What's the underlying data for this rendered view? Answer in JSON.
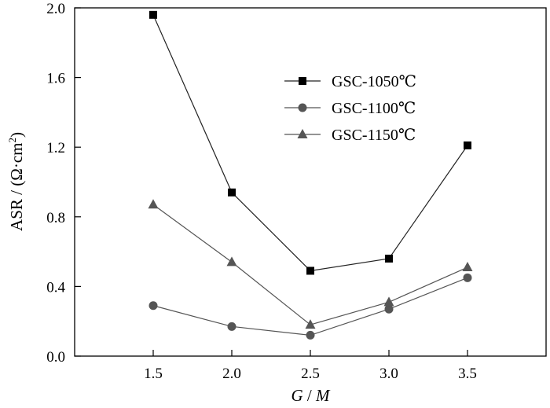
{
  "chart_data": {
    "type": "line",
    "title": "",
    "xlabel": "G / M",
    "ylabel": "ASR / (Ω·cm²)",
    "ylabel_main": "ASR / (Ω·cm",
    "ylabel_sup": "2",
    "ylabel_close": ")",
    "xlabel_g": "G",
    "xlabel_sep": " / ",
    "xlabel_m": "M",
    "x": [
      1.5,
      2.0,
      2.5,
      3.0,
      3.5
    ],
    "xlim": [
      1.0,
      4.0
    ],
    "ylim": [
      0.0,
      2.0
    ],
    "x_ticks": [
      "1.5",
      "2.0",
      "2.5",
      "3.0",
      "3.5"
    ],
    "y_ticks": [
      "0.0",
      "0.4",
      "0.8",
      "1.2",
      "1.6",
      "2.0"
    ],
    "grid": false,
    "legend_position": "top-right",
    "series": [
      {
        "name": "GSC-1050℃",
        "marker": "square",
        "color": "#000000",
        "line_color": "#222222",
        "values": [
          1.96,
          0.94,
          0.49,
          0.56,
          1.21
        ]
      },
      {
        "name": "GSC-1100℃",
        "marker": "circle",
        "color": "#555555",
        "line_color": "#555555",
        "values": [
          0.29,
          0.17,
          0.12,
          0.27,
          0.45
        ]
      },
      {
        "name": "GSC-1150℃",
        "marker": "triangle",
        "color": "#555555",
        "line_color": "#555555",
        "values": [
          0.87,
          0.54,
          0.18,
          0.31,
          0.51
        ]
      }
    ]
  }
}
